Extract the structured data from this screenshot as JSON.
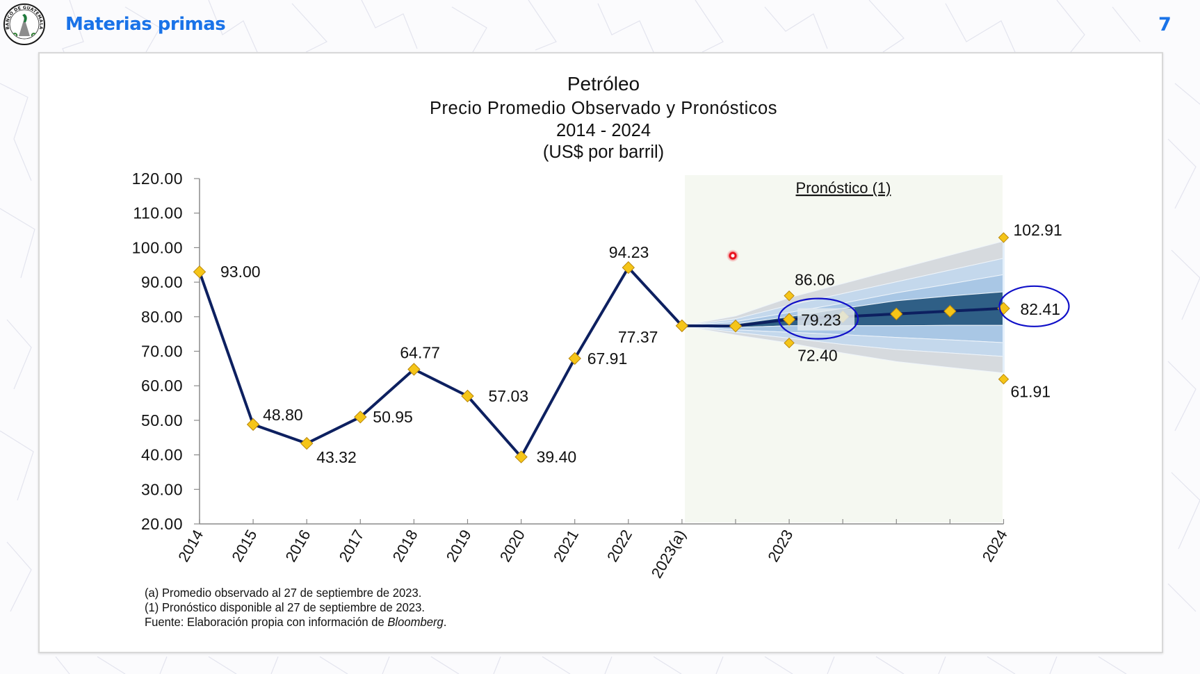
{
  "header": {
    "title": "Materias primas",
    "page_number": "7",
    "logo_text": "BANCO DE GUATEMALA",
    "accent_color": "#1a73e8"
  },
  "chart_data": {
    "type": "line",
    "title": "Petróleo",
    "subtitle_lines": [
      "Precio Promedio Observado y Pronósticos",
      "2014 - 2024",
      "(US$ por barril)"
    ],
    "xlabel": "",
    "ylabel": "",
    "ylim": [
      20,
      120
    ],
    "y_ticks": [
      "120.00",
      "110.00",
      "100.00",
      "90.00",
      "80.00",
      "70.00",
      "60.00",
      "50.00",
      "40.00",
      "30.00",
      "20.00"
    ],
    "grid": false,
    "forecast_region_label": "Pronóstico (1)",
    "x_tick_labels": [
      "2014",
      "2015",
      "2016",
      "2017",
      "2018",
      "2019",
      "2020",
      "2021",
      "2022",
      "2023(a)",
      "",
      "2023",
      "",
      "",
      "",
      "2024"
    ],
    "observed": {
      "name": "Precio promedio observado",
      "color": "#0d2060",
      "categories": [
        "2014",
        "2015",
        "2016",
        "2017",
        "2018",
        "2019",
        "2020",
        "2021",
        "2022",
        "2023(a)"
      ],
      "values": [
        93.0,
        48.8,
        43.32,
        50.95,
        64.77,
        57.03,
        39.4,
        67.91,
        94.23,
        77.37
      ],
      "labels": [
        "93.00",
        "48.80",
        "43.32",
        "50.95",
        "64.77",
        "57.03",
        "39.40",
        "67.91",
        "94.23",
        "77.37"
      ]
    },
    "forecast": {
      "name": "Pronóstico central",
      "color": "#0d2060",
      "steps": [
        "2023(a)",
        "q1",
        "2023",
        "q3",
        "q4",
        "q5",
        "2024"
      ],
      "central": [
        77.37,
        77.3,
        79.23,
        80.0,
        80.8,
        81.6,
        82.41
      ],
      "labeled": [
        {
          "step": 2,
          "value": 79.23,
          "label": "79.23",
          "highlighted": true
        },
        {
          "step": 6,
          "value": 82.41,
          "label": "82.41",
          "highlighted": true
        }
      ],
      "upper_bound": [
        {
          "step": 2,
          "value": 86.06,
          "label": "86.06"
        },
        {
          "step": 6,
          "value": 102.91,
          "label": "102.91"
        }
      ],
      "lower_bound": [
        {
          "step": 2,
          "value": 72.4,
          "label": "72.40"
        },
        {
          "step": 6,
          "value": 61.91,
          "label": "61.91"
        }
      ],
      "fan_bands": {
        "colors": [
          "#d6dade",
          "#c4d8ec",
          "#a9c7e5",
          "#2f5f86",
          "#a9c7e5",
          "#c4d8ec",
          "#d6dade"
        ],
        "levels": [
          {
            "name": "u3",
            "values": [
              77.37,
              80.2,
              85.5,
              89.6,
              93.7,
              97.8,
              101.9
            ]
          },
          {
            "name": "u2",
            "values": [
              77.37,
              79.4,
              83.3,
              86.7,
              90.1,
              93.5,
              96.9
            ]
          },
          {
            "name": "u1",
            "values": [
              77.37,
              78.6,
              81.2,
              83.9,
              86.9,
              89.5,
              92.2
            ]
          },
          {
            "name": "dark_top",
            "values": [
              77.37,
              77.9,
              80.0,
              82.4,
              84.6,
              86.0,
              87.2
            ]
          },
          {
            "name": "dark_bottom",
            "values": [
              77.37,
              76.9,
              77.4,
              77.4,
              77.4,
              77.5,
              77.5
            ]
          },
          {
            "name": "l1",
            "values": [
              77.37,
              76.2,
              75.5,
              74.8,
              74.0,
              73.3,
              72.5
            ]
          },
          {
            "name": "l2",
            "values": [
              77.37,
              75.5,
              73.8,
              72.0,
              70.5,
              69.5,
              68.5
            ]
          },
          {
            "name": "l3",
            "values": [
              77.37,
              74.7,
              72.4,
              69.5,
              67.0,
              65.3,
              63.7
            ]
          }
        ]
      }
    },
    "marker_color": "#f5c518",
    "highlight_color": "#1010c8"
  },
  "notes": {
    "note_a": "(a) Promedio observado al 27 de septiembre de 2023.",
    "note_1": "(1) Pronóstico disponible al 27 de septiembre de 2023.",
    "source_prefix": "Fuente: Elaboración propia con información de ",
    "source_name": "Bloomberg",
    "source_suffix": "."
  }
}
